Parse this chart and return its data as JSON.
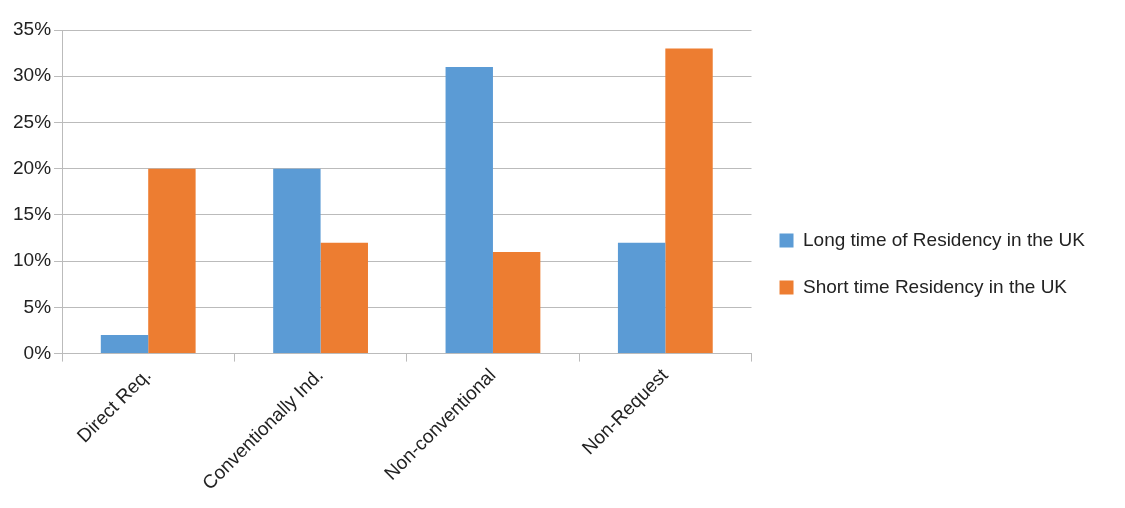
{
  "chart_data": {
    "type": "bar",
    "categories": [
      "Direct Req.",
      "Conventionally Ind.",
      "Non-conventional",
      "Non-Request"
    ],
    "series": [
      {
        "name": "Long time of Residency in the UK",
        "color": "#5b9bd5",
        "values": [
          2,
          20,
          31,
          12
        ]
      },
      {
        "name": "Short time Residency in the UK",
        "color": "#ed7d31",
        "values": [
          20,
          12,
          11,
          33
        ]
      }
    ],
    "ylim": [
      0,
      35
    ],
    "yticks": [
      {
        "value": 0,
        "label": "0%"
      },
      {
        "value": 5,
        "label": "5%"
      },
      {
        "value": 10,
        "label": "10%"
      },
      {
        "value": 15,
        "label": "15%"
      },
      {
        "value": 20,
        "label": "20%"
      },
      {
        "value": 25,
        "label": "25%"
      },
      {
        "value": 30,
        "label": "30%"
      },
      {
        "value": 35,
        "label": "35%"
      }
    ],
    "grid": "y",
    "legend": "right"
  }
}
